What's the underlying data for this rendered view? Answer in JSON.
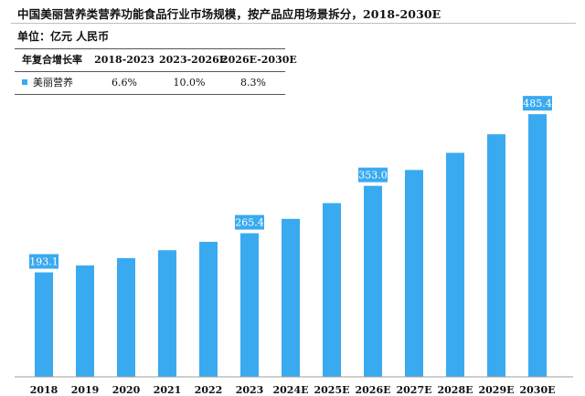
{
  "header": {
    "title": "中国美丽营养类营养功能食品行业市场规模，按产品应用场景拆分，2018-2030E",
    "unit": "单位：亿元 人民币"
  },
  "cagr_table": {
    "header": [
      "年复合增长率",
      "2018-2023",
      "2023-2026E",
      "2026E-2030E"
    ],
    "rows": [
      {
        "label": "美丽营养",
        "values": [
          "6.6%",
          "10.0%",
          "8.3%"
        ]
      }
    ]
  },
  "colors": {
    "bar": "#3aaaf0",
    "label_bg": "#3aaaf0",
    "label_text": "#ffffff",
    "axis": "#9e9e9e"
  },
  "chart_data": {
    "type": "bar",
    "title": "中国美丽营养类营养功能食品行业市场规模，按产品应用场景拆分，2018-2030E",
    "ylabel": "",
    "xlabel": "",
    "categories": [
      "2018",
      "2019",
      "2020",
      "2021",
      "2022",
      "2023",
      "2024E",
      "2025E",
      "2026E",
      "2027E",
      "2028E",
      "2029E",
      "2030E"
    ],
    "series": [
      {
        "name": "美丽营养",
        "values": [
          193.1,
          205.9,
          219.5,
          234.0,
          249.5,
          265.4,
          292.0,
          321.1,
          353.0,
          382.3,
          414.0,
          448.3,
          485.4
        ]
      }
    ],
    "data_labels": [
      {
        "category": "2018",
        "text": "193.1"
      },
      {
        "category": "2023",
        "text": "265.4"
      },
      {
        "category": "2026E",
        "text": "353.0"
      },
      {
        "category": "2030E",
        "text": "485.4"
      }
    ],
    "ylim": [
      0,
      540
    ],
    "grid": false,
    "legend": "table-top-left"
  }
}
